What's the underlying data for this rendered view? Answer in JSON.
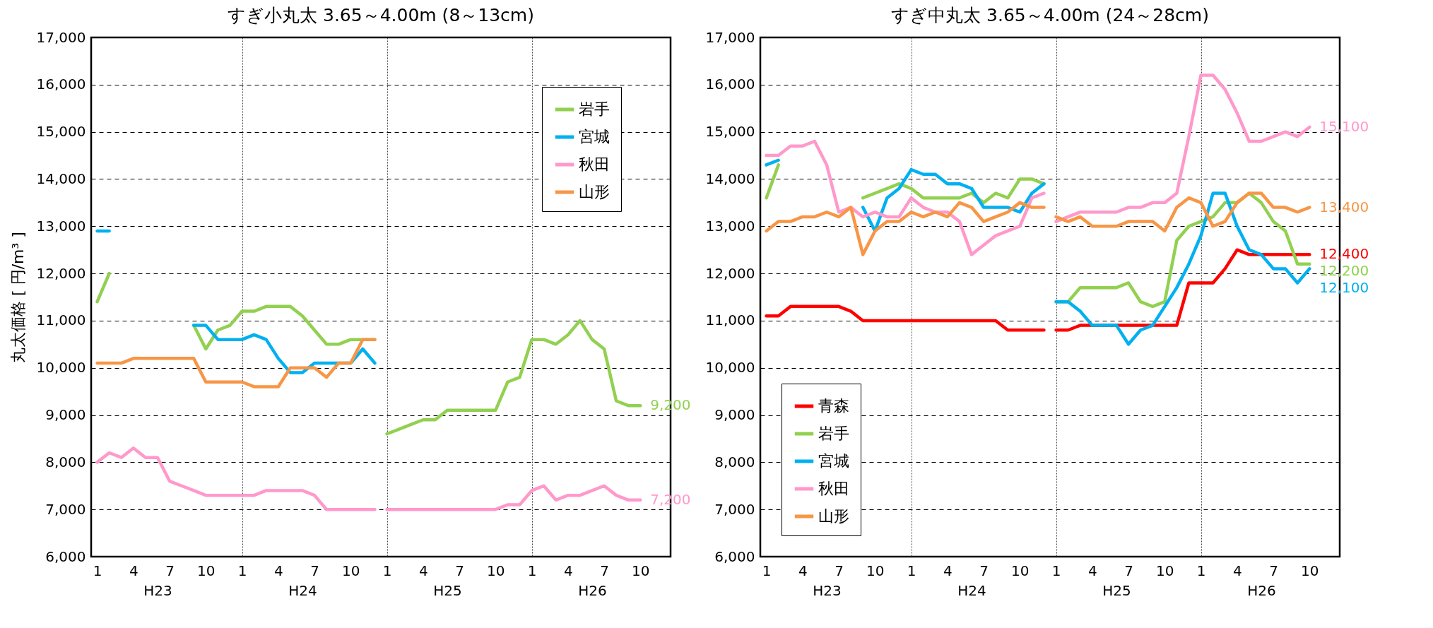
{
  "chart_data": [
    {
      "type": "line",
      "title": "すぎ小丸太 3.65～4.00m (8～13cm)",
      "ylabel": "丸太価格 [ 円/m³ ]",
      "categories": [
        "1",
        null,
        null,
        "4",
        null,
        null,
        "7",
        null,
        null,
        "10",
        null,
        null,
        "1",
        null,
        null,
        "4",
        null,
        null,
        "7",
        null,
        null,
        "10",
        null,
        null,
        "1",
        null,
        null,
        "4",
        null,
        null,
        "7",
        null,
        null,
        "10",
        null,
        null,
        "1",
        null,
        null,
        "4",
        null,
        null,
        "7",
        null,
        null,
        "10",
        null,
        null
      ],
      "annotations": [
        "H23",
        "H24",
        "H25",
        "H26"
      ],
      "ylim": [
        6000,
        17000
      ],
      "yticks": [
        {
          "value": 6000,
          "label": "6,000"
        },
        {
          "value": 7000,
          "label": "7,000"
        },
        {
          "value": 8000,
          "label": "8,000"
        },
        {
          "value": 9000,
          "label": "9,000"
        },
        {
          "value": 10000,
          "label": "10,000"
        },
        {
          "value": 11000,
          "label": "11,000"
        },
        {
          "value": 12000,
          "label": "12,000"
        },
        {
          "value": 13000,
          "label": "13,000"
        },
        {
          "value": 14000,
          "label": "14,000"
        },
        {
          "value": 15000,
          "label": "15,000"
        },
        {
          "value": 16000,
          "label": "16,000"
        },
        {
          "value": 17000,
          "label": "17,000"
        }
      ],
      "grid": true,
      "legend": "top right",
      "series": [
        {
          "name": "岩手",
          "color": "#92d050",
          "values": [
            11400,
            12000,
            null,
            null,
            null,
            null,
            null,
            null,
            10900,
            10400,
            10800,
            10900,
            11200,
            11200,
            11300,
            11300,
            11300,
            11100,
            10800,
            10500,
            10500,
            10600,
            10600,
            10600,
            null,
            null,
            null,
            null,
            null,
            null,
            null,
            null,
            null,
            null,
            null,
            null,
            null,
            null,
            null,
            null,
            null,
            null,
            null,
            null,
            null,
            null,
            null,
            null
          ]
        },
        {
          "name": "宮城",
          "color": "#00b0f0",
          "values": [
            12900,
            12900,
            null,
            null,
            null,
            null,
            null,
            null,
            10900,
            10900,
            10600,
            10600,
            10600,
            10700,
            10600,
            10200,
            9900,
            9900,
            10100,
            10100,
            10100,
            10100,
            10400,
            10100,
            null,
            null,
            null,
            null,
            null,
            null,
            null,
            null,
            null,
            null,
            null,
            null,
            null,
            null,
            null,
            null,
            null,
            null,
            null,
            null,
            null,
            null,
            null,
            null
          ]
        },
        {
          "name": "秋田",
          "color": "#ff99cc",
          "values": [
            8000,
            8200,
            8100,
            8300,
            8100,
            8100,
            7600,
            7500,
            7400,
            7300,
            7300,
            7300,
            7300,
            7300,
            7400,
            7400,
            7400,
            7400,
            7300,
            7000,
            7000,
            7000,
            7000,
            7000,
            null,
            null,
            null,
            null,
            null,
            null,
            null,
            null,
            null,
            null,
            null,
            null,
            null,
            null,
            null,
            null,
            null,
            null,
            null,
            null,
            null,
            null,
            null,
            null
          ]
        },
        {
          "name": "山形",
          "color": "#f79646",
          "values": [
            10100,
            10100,
            10100,
            10200,
            10200,
            10200,
            10200,
            10200,
            10200,
            9700,
            9700,
            9700,
            9700,
            9600,
            9600,
            9600,
            10000,
            10000,
            10000,
            9800,
            10100,
            10100,
            10600,
            10600,
            null,
            null,
            null,
            null,
            null,
            null,
            null,
            null,
            null,
            null,
            null,
            null,
            null,
            null,
            null,
            null,
            null,
            null,
            null,
            null,
            null,
            null,
            null,
            null
          ]
        },
        {
          "color": "#92d050",
          "values": [
            null,
            null,
            null,
            null,
            null,
            null,
            null,
            null,
            null,
            null,
            null,
            null,
            null,
            null,
            null,
            null,
            null,
            null,
            null,
            null,
            null,
            null,
            null,
            null,
            8600,
            8700,
            8800,
            8900,
            8900,
            9100,
            9100,
            9100,
            9100,
            9100,
            9700,
            9800,
            10600,
            10600,
            10500,
            10700,
            11000,
            10600,
            10400,
            9300,
            9200,
            9200,
            null,
            null
          ],
          "value_labels": [
            null,
            null,
            null,
            null,
            null,
            null,
            null,
            null,
            null,
            null,
            null,
            null,
            null,
            null,
            null,
            null,
            null,
            null,
            null,
            null,
            null,
            null,
            null,
            null,
            null,
            null,
            null,
            null,
            null,
            null,
            null,
            null,
            null,
            null,
            null,
            null,
            null,
            null,
            null,
            null,
            null,
            null,
            null,
            null,
            null,
            "9,200",
            null,
            null
          ]
        },
        {
          "color": "#ff99cc",
          "values": [
            null,
            null,
            null,
            null,
            null,
            null,
            null,
            null,
            null,
            null,
            null,
            null,
            null,
            null,
            null,
            null,
            null,
            null,
            null,
            null,
            null,
            null,
            null,
            null,
            7000,
            7000,
            7000,
            7000,
            7000,
            7000,
            7000,
            7000,
            7000,
            7000,
            7100,
            7100,
            7400,
            7500,
            7200,
            7300,
            7300,
            7400,
            7500,
            7300,
            7200,
            7200,
            null,
            null
          ],
          "value_labels": [
            null,
            null,
            null,
            null,
            null,
            null,
            null,
            null,
            null,
            null,
            null,
            null,
            null,
            null,
            null,
            null,
            null,
            null,
            null,
            null,
            null,
            null,
            null,
            null,
            null,
            null,
            null,
            null,
            null,
            null,
            null,
            null,
            null,
            null,
            null,
            null,
            null,
            null,
            null,
            null,
            null,
            null,
            null,
            null,
            null,
            "7,200",
            null,
            null
          ]
        }
      ]
    },
    {
      "type": "line",
      "title": "すぎ中丸太 3.65～4.00m (24～28cm)",
      "categories": [
        "1",
        null,
        null,
        "4",
        null,
        null,
        "7",
        null,
        null,
        "10",
        null,
        null,
        "1",
        null,
        null,
        "4",
        null,
        null,
        "7",
        null,
        null,
        "10",
        null,
        null,
        "1",
        null,
        null,
        "4",
        null,
        null,
        "7",
        null,
        null,
        "10",
        null,
        null,
        "1",
        null,
        null,
        "4",
        null,
        null,
        "7",
        null,
        null,
        "10",
        null,
        null
      ],
      "annotations": [
        "H23",
        "H24",
        "H25",
        "H26"
      ],
      "ylim": [
        6000,
        17000
      ],
      "yticks": [
        {
          "value": 6000,
          "label": "6,000"
        },
        {
          "value": 7000,
          "label": "7,000"
        },
        {
          "value": 8000,
          "label": "8,000"
        },
        {
          "value": 9000,
          "label": "9,000"
        },
        {
          "value": 10000,
          "label": "10,000"
        },
        {
          "value": 11000,
          "label": "11,000"
        },
        {
          "value": 12000,
          "label": "12,000"
        },
        {
          "value": 13000,
          "label": "13,000"
        },
        {
          "value": 14000,
          "label": "14,000"
        },
        {
          "value": 15000,
          "label": "15,000"
        },
        {
          "value": 16000,
          "label": "16,000"
        },
        {
          "value": 17000,
          "label": "17,000"
        }
      ],
      "grid": true,
      "legend": "bottom left",
      "series": [
        {
          "name": "青森",
          "color": "#ff0000",
          "values": [
            11100,
            11100,
            11300,
            11300,
            11300,
            11300,
            11300,
            11200,
            11000,
            11000,
            11000,
            11000,
            11000,
            11000,
            11000,
            11000,
            11000,
            11000,
            11000,
            11000,
            10800,
            10800,
            10800,
            10800,
            null,
            null,
            null,
            null,
            null,
            null,
            null,
            null,
            null,
            null,
            null,
            null,
            null,
            null,
            null,
            null,
            null,
            null,
            null,
            null,
            null,
            null,
            null,
            null
          ]
        },
        {
          "name": "岩手",
          "color": "#92d050",
          "values": [
            13600,
            14300,
            null,
            null,
            null,
            null,
            null,
            null,
            13600,
            13700,
            13800,
            13900,
            13800,
            13600,
            13600,
            13600,
            13600,
            13700,
            13500,
            13700,
            13600,
            14000,
            14000,
            13900,
            null,
            null,
            null,
            null,
            null,
            null,
            null,
            null,
            null,
            null,
            null,
            null,
            null,
            null,
            null,
            null,
            null,
            null,
            null,
            null,
            null,
            null,
            null,
            null
          ]
        },
        {
          "name": "宮城",
          "color": "#00b0f0",
          "values": [
            14300,
            14400,
            null,
            null,
            null,
            null,
            null,
            null,
            13400,
            12900,
            13600,
            13800,
            14200,
            14100,
            14100,
            13900,
            13900,
            13800,
            13400,
            13400,
            13400,
            13300,
            13700,
            13900,
            null,
            null,
            null,
            null,
            null,
            null,
            null,
            null,
            null,
            null,
            null,
            null,
            null,
            null,
            null,
            null,
            null,
            null,
            null,
            null,
            null,
            null,
            null,
            null
          ]
        },
        {
          "name": "秋田",
          "color": "#ff99cc",
          "values": [
            14500,
            14500,
            14700,
            14700,
            14800,
            14300,
            13300,
            13400,
            13200,
            13300,
            13200,
            13200,
            13600,
            13400,
            13300,
            13300,
            13100,
            12400,
            12600,
            12800,
            12900,
            13000,
            13600,
            13700,
            null,
            null,
            null,
            null,
            null,
            null,
            null,
            null,
            null,
            null,
            null,
            null,
            null,
            null,
            null,
            null,
            null,
            null,
            null,
            null,
            null,
            null,
            null,
            null
          ]
        },
        {
          "name": "山形",
          "color": "#f79646",
          "values": [
            12900,
            13100,
            13100,
            13200,
            13200,
            13300,
            13200,
            13400,
            12400,
            12900,
            13100,
            13100,
            13300,
            13200,
            13300,
            13200,
            13500,
            13400,
            13100,
            13200,
            13300,
            13500,
            13400,
            13400,
            null,
            null,
            null,
            null,
            null,
            null,
            null,
            null,
            null,
            null,
            null,
            null,
            null,
            null,
            null,
            null,
            null,
            null,
            null,
            null,
            null,
            null,
            null,
            null
          ]
        },
        {
          "color": "#ff0000",
          "values": [
            null,
            null,
            null,
            null,
            null,
            null,
            null,
            null,
            null,
            null,
            null,
            null,
            null,
            null,
            null,
            null,
            null,
            null,
            null,
            null,
            null,
            null,
            null,
            null,
            10800,
            10800,
            10900,
            10900,
            10900,
            10900,
            10900,
            10900,
            10900,
            10900,
            10900,
            11800,
            11800,
            11800,
            12100,
            12500,
            12400,
            12400,
            12400,
            12400,
            12400,
            12400,
            null,
            null
          ],
          "value_labels": [
            null,
            null,
            null,
            null,
            null,
            null,
            null,
            null,
            null,
            null,
            null,
            null,
            null,
            null,
            null,
            null,
            null,
            null,
            null,
            null,
            null,
            null,
            null,
            null,
            null,
            null,
            null,
            null,
            null,
            null,
            null,
            null,
            null,
            null,
            null,
            null,
            null,
            null,
            null,
            null,
            null,
            null,
            null,
            null,
            null,
            "12,400",
            null,
            null
          ]
        },
        {
          "color": "#92d050",
          "values": [
            null,
            null,
            null,
            null,
            null,
            null,
            null,
            null,
            null,
            null,
            null,
            null,
            null,
            null,
            null,
            null,
            null,
            null,
            null,
            null,
            null,
            null,
            null,
            null,
            11400,
            11400,
            11700,
            11700,
            11700,
            11700,
            11800,
            11400,
            11300,
            11400,
            12700,
            13000,
            13100,
            13200,
            13500,
            13500,
            13700,
            13500,
            13100,
            12900,
            12200,
            12200,
            null,
            null
          ],
          "value_labels": [
            null,
            null,
            null,
            null,
            null,
            null,
            null,
            null,
            null,
            null,
            null,
            null,
            null,
            null,
            null,
            null,
            null,
            null,
            null,
            null,
            null,
            null,
            null,
            null,
            null,
            null,
            null,
            null,
            null,
            null,
            null,
            null,
            null,
            null,
            null,
            null,
            null,
            null,
            null,
            null,
            null,
            null,
            null,
            null,
            null,
            "12,200",
            null,
            null
          ]
        },
        {
          "color": "#00b0f0",
          "values": [
            null,
            null,
            null,
            null,
            null,
            null,
            null,
            null,
            null,
            null,
            null,
            null,
            null,
            null,
            null,
            null,
            null,
            null,
            null,
            null,
            null,
            null,
            null,
            null,
            11400,
            11400,
            11200,
            10900,
            10900,
            10900,
            10500,
            10800,
            10900,
            11300,
            11700,
            12200,
            12800,
            13700,
            13700,
            13000,
            12500,
            12400,
            12100,
            12100,
            11800,
            12100,
            null,
            null
          ],
          "value_labels": [
            null,
            null,
            null,
            null,
            null,
            null,
            null,
            null,
            null,
            null,
            null,
            null,
            null,
            null,
            null,
            null,
            null,
            null,
            null,
            null,
            null,
            null,
            null,
            null,
            null,
            null,
            null,
            null,
            null,
            null,
            null,
            null,
            null,
            null,
            null,
            null,
            null,
            null,
            null,
            null,
            null,
            null,
            null,
            null,
            null,
            "12,100",
            null,
            null
          ]
        },
        {
          "color": "#ff99cc",
          "values": [
            null,
            null,
            null,
            null,
            null,
            null,
            null,
            null,
            null,
            null,
            null,
            null,
            null,
            null,
            null,
            null,
            null,
            null,
            null,
            null,
            null,
            null,
            null,
            null,
            13100,
            13200,
            13300,
            13300,
            13300,
            13300,
            13400,
            13400,
            13500,
            13500,
            13700,
            14900,
            16200,
            16200,
            15900,
            15400,
            14800,
            14800,
            14900,
            15000,
            14900,
            15100,
            null,
            null
          ],
          "value_labels": [
            null,
            null,
            null,
            null,
            null,
            null,
            null,
            null,
            null,
            null,
            null,
            null,
            null,
            null,
            null,
            null,
            null,
            null,
            null,
            null,
            null,
            null,
            null,
            null,
            null,
            null,
            null,
            null,
            null,
            null,
            null,
            null,
            null,
            null,
            null,
            null,
            null,
            null,
            null,
            null,
            null,
            null,
            null,
            null,
            null,
            "15,100",
            null,
            null
          ]
        },
        {
          "color": "#f79646",
          "values": [
            null,
            null,
            null,
            null,
            null,
            null,
            null,
            null,
            null,
            null,
            null,
            null,
            null,
            null,
            null,
            null,
            null,
            null,
            null,
            null,
            null,
            null,
            null,
            null,
            13200,
            13100,
            13200,
            13000,
            13000,
            13000,
            13100,
            13100,
            13100,
            12900,
            13400,
            13600,
            13500,
            13000,
            13100,
            13500,
            13700,
            13700,
            13400,
            13400,
            13300,
            13400,
            null,
            null
          ],
          "value_labels": [
            null,
            null,
            null,
            null,
            null,
            null,
            null,
            null,
            null,
            null,
            null,
            null,
            null,
            null,
            null,
            null,
            null,
            null,
            null,
            null,
            null,
            null,
            null,
            null,
            null,
            null,
            null,
            null,
            null,
            null,
            null,
            null,
            null,
            null,
            null,
            null,
            null,
            null,
            null,
            null,
            null,
            null,
            null,
            null,
            null,
            "13,400",
            null,
            null
          ]
        }
      ]
    }
  ]
}
